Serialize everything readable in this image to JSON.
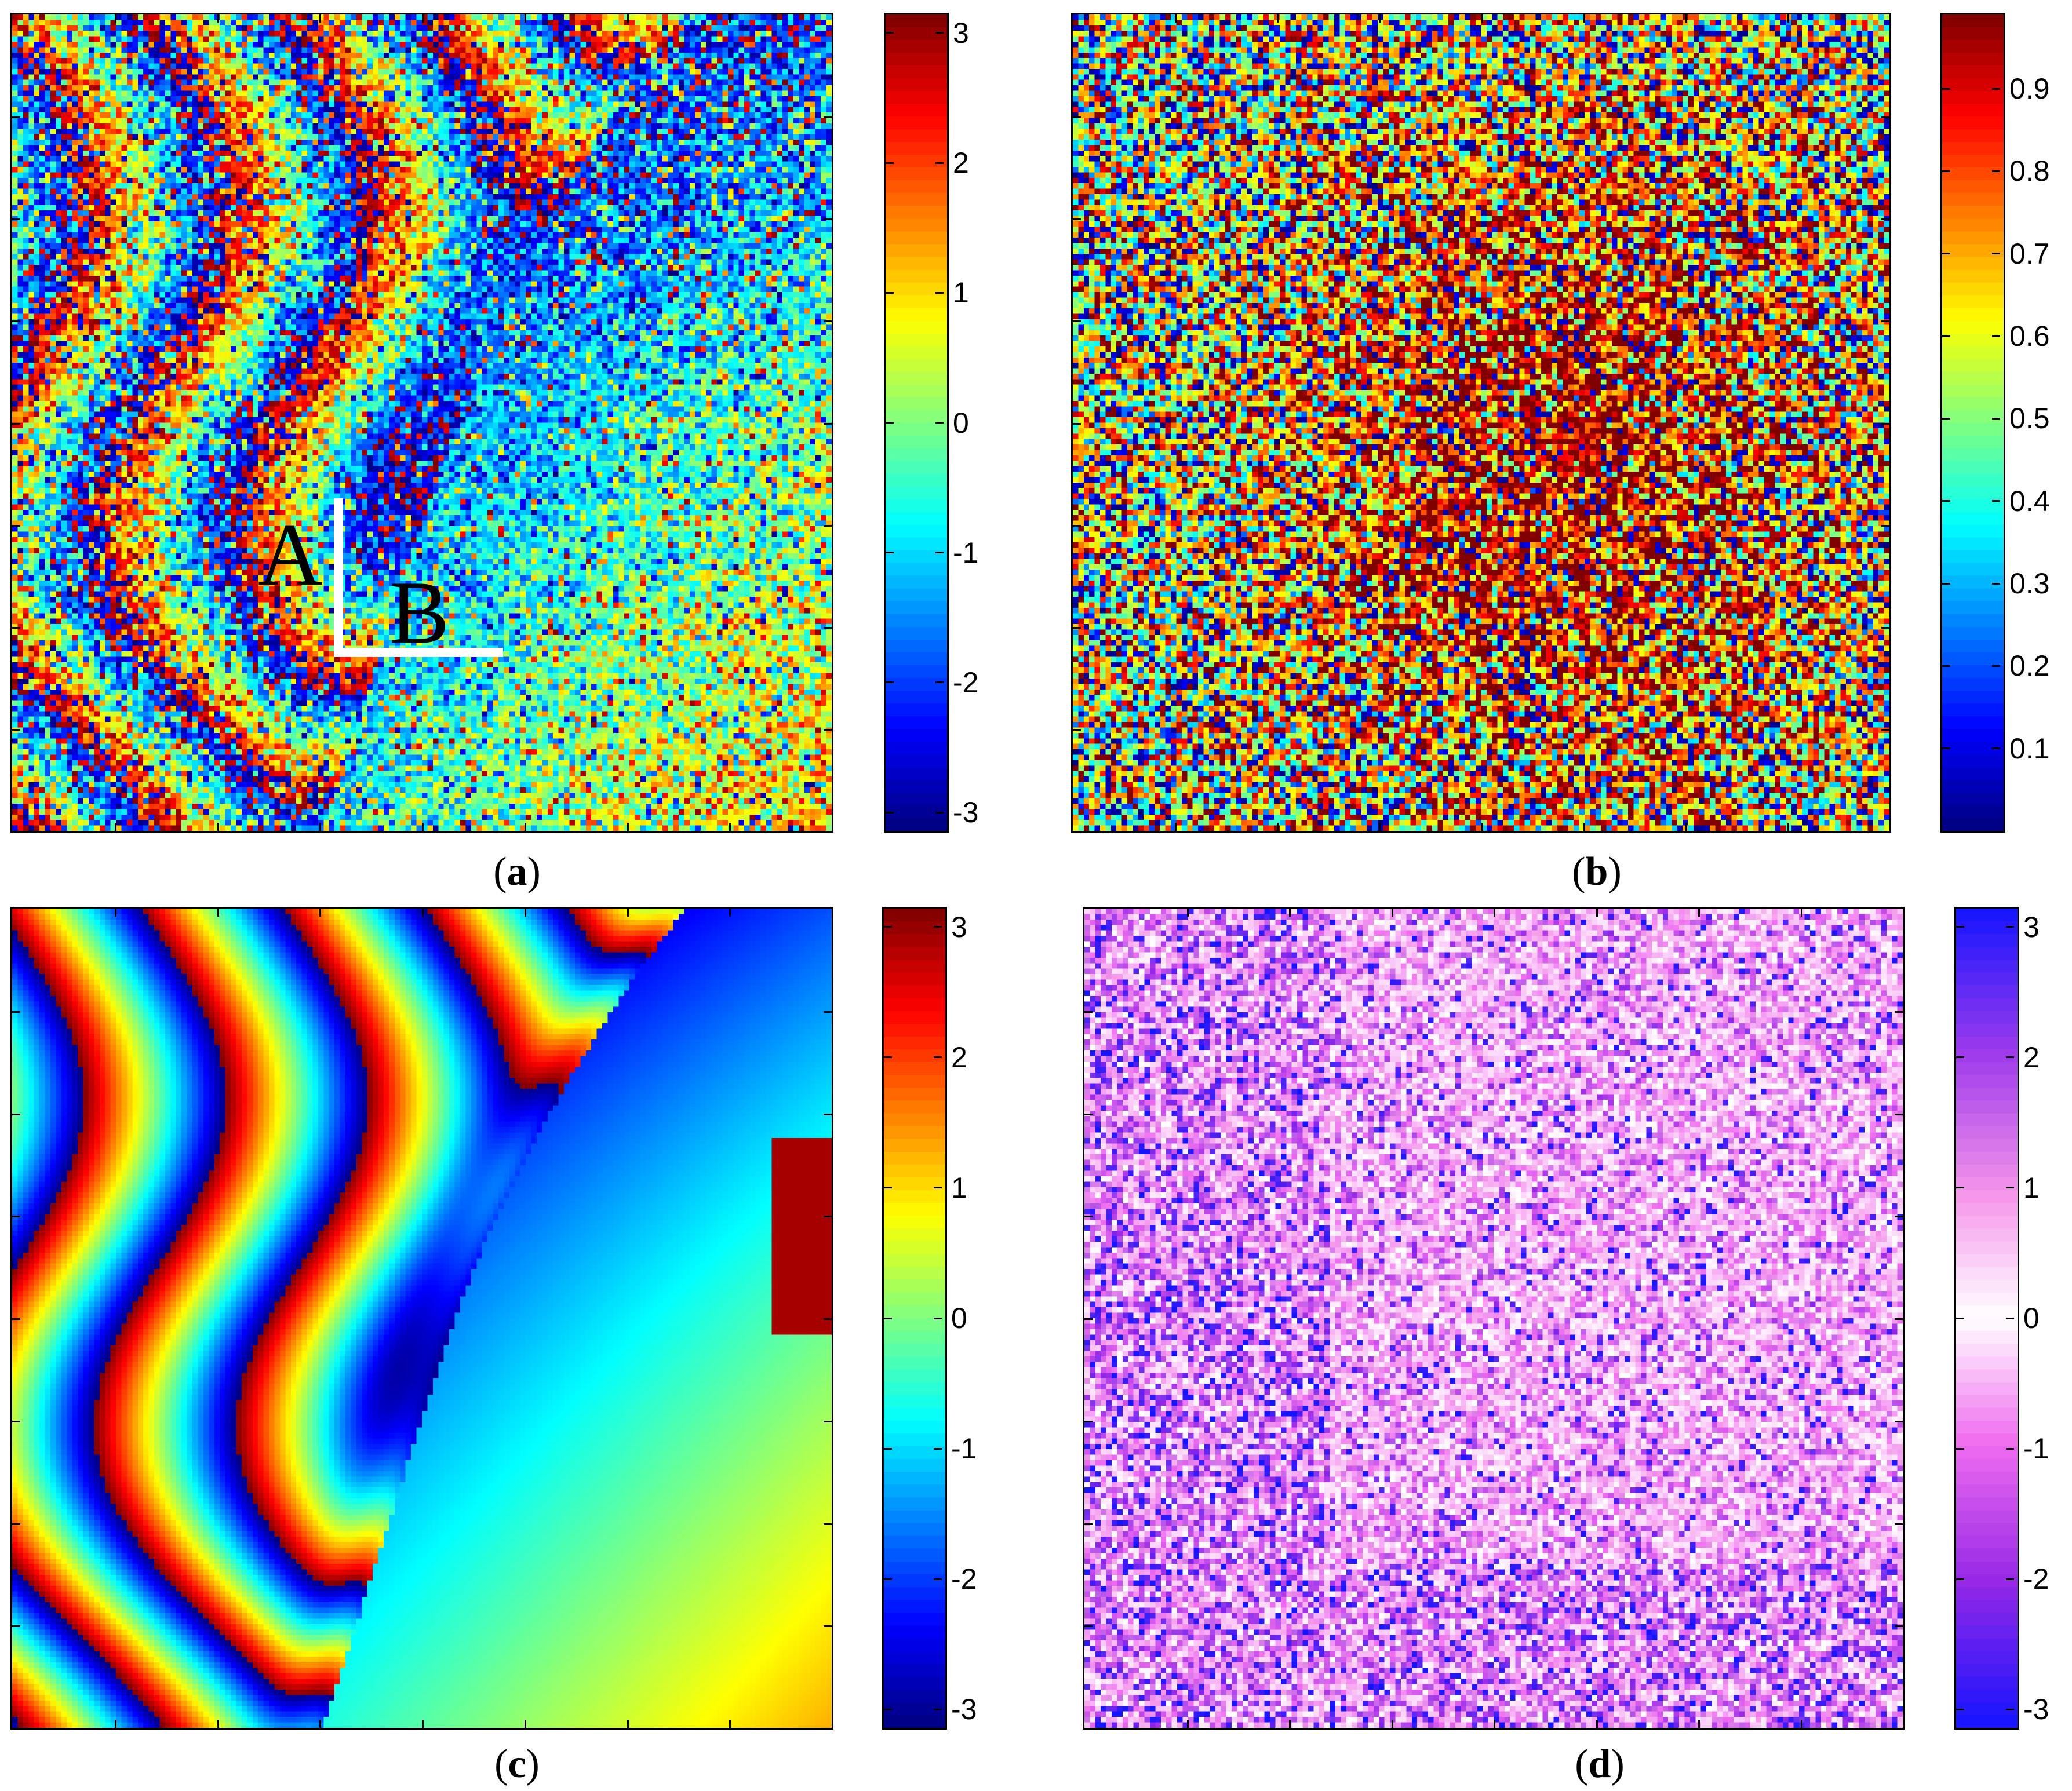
{
  "panels": [
    {
      "id": "a",
      "caption_letter": "a",
      "kind": "noisy-interferogram",
      "colormap": "jet",
      "colorbar": {
        "range": [
          -3.1416,
          3.1416
        ],
        "ticks": [
          "3",
          "2",
          "1",
          "0",
          "-1",
          "-2",
          "-3"
        ],
        "tick_values": [
          3,
          2,
          1,
          0,
          -1,
          -2,
          -3
        ]
      },
      "annotations": {
        "label_a": "A",
        "label_b": "B"
      }
    },
    {
      "id": "b",
      "caption_letter": "b",
      "kind": "coherence",
      "colormap": "jet",
      "colorbar": {
        "range": [
          0,
          0.99
        ],
        "ticks": [
          "0.9",
          "0.8",
          "0.7",
          "0.6",
          "0.5",
          "0.4",
          "0.3",
          "0.2",
          "0.1"
        ],
        "tick_values": [
          0.9,
          0.8,
          0.7,
          0.6,
          0.5,
          0.4,
          0.3,
          0.2,
          0.1
        ]
      }
    },
    {
      "id": "c",
      "caption_letter": "c",
      "kind": "filtered-interferogram",
      "colormap": "jet",
      "colorbar": {
        "range": [
          -3.1416,
          3.1416
        ],
        "ticks": [
          "3",
          "2",
          "1",
          "0",
          "-1",
          "-2",
          "-3"
        ],
        "tick_values": [
          3,
          2,
          1,
          0,
          -1,
          -2,
          -3
        ]
      }
    },
    {
      "id": "d",
      "caption_letter": "d",
      "kind": "residual-phase",
      "colormap": "blue-magenta-white",
      "colorbar": {
        "range": [
          -3.1416,
          3.1416
        ],
        "ticks": [
          "3",
          "2",
          "1",
          "0",
          "-1",
          "-2",
          "-3"
        ],
        "tick_values": [
          3,
          2,
          1,
          0,
          -1,
          -2,
          -3
        ]
      }
    }
  ],
  "chart_data": [
    {
      "type": "heatmap",
      "title": "",
      "colorbar_range": [
        -3.1416,
        3.1416
      ],
      "grid": false
    },
    {
      "type": "heatmap",
      "title": "",
      "colorbar_range": [
        0,
        0.99
      ],
      "grid": false
    },
    {
      "type": "heatmap",
      "title": "",
      "colorbar_range": [
        -3.1416,
        3.1416
      ],
      "grid": false
    },
    {
      "type": "heatmap",
      "title": "",
      "colorbar_range": [
        -3.1416,
        3.1416
      ],
      "grid": false
    }
  ],
  "colors": {
    "overlay_line": "#ffffff",
    "frame": "#000000"
  }
}
